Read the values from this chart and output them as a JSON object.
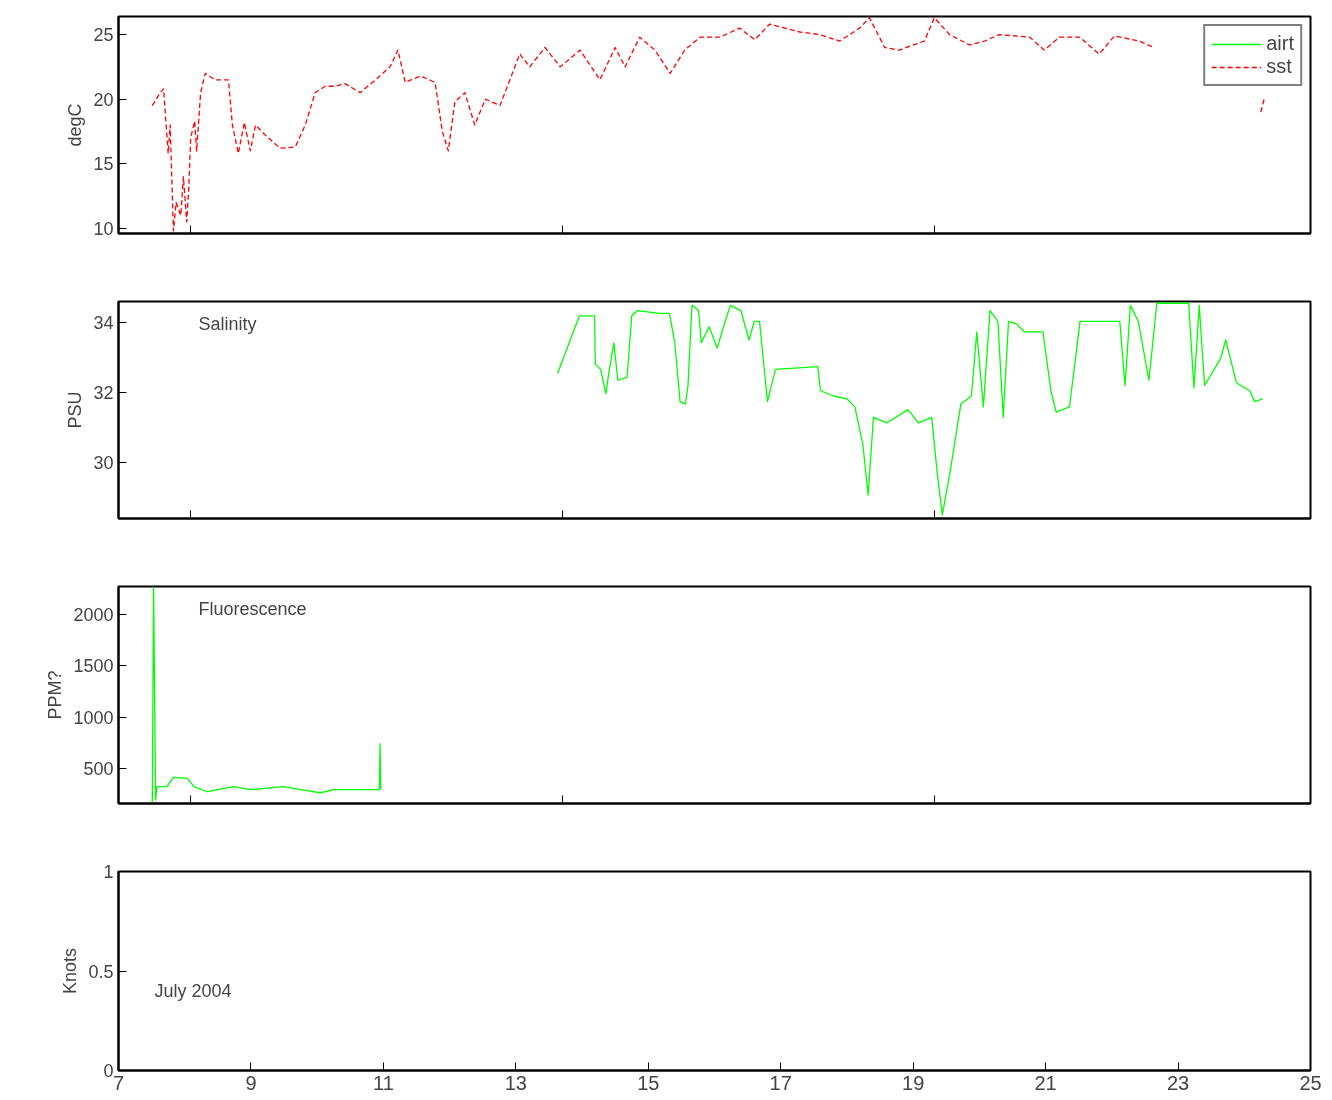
{
  "chart_data": [
    {
      "type": "line",
      "ylabel": "degC",
      "xlim": [
        7,
        25
      ],
      "ylim": [
        9.6,
        26.4
      ],
      "xticks": [
        {
          "value": 8.09,
          "label": null
        },
        {
          "value": 13.71,
          "label": null
        },
        {
          "value": 19.32,
          "label": null
        }
      ],
      "yticks": [
        10,
        15,
        20,
        25
      ],
      "tick_labels": "y",
      "grid": false,
      "legend": "top right",
      "series": [
        {
          "name": "airt",
          "color": "#00ff00",
          "line_style": "solid"
        },
        {
          "name": "sst",
          "color": "#ff0000",
          "line_style": "dashed",
          "x": [
            7.51,
            7.63,
            7.68,
            7.75,
            7.78,
            7.83,
            7.87,
            7.94,
            7.98,
            8.03,
            8.06,
            8.09,
            8.15,
            8.18,
            8.24,
            8.31,
            8.46,
            8.66,
            8.72,
            8.81,
            8.9,
            8.99,
            9.07,
            9.22,
            9.44,
            9.67,
            9.82,
            9.97,
            10.12,
            10.27,
            10.42,
            10.65,
            10.88,
            11.1,
            11.22,
            11.33,
            11.56,
            11.78,
            11.89,
            11.98,
            12.08,
            12.23,
            12.38,
            12.54,
            12.76,
            12.91,
            13.06,
            13.21,
            13.44,
            13.67,
            13.97,
            14.27,
            14.5,
            14.65,
            14.87,
            15.1,
            15.33,
            15.55,
            15.78,
            16.08,
            16.38,
            16.61,
            16.83,
            17.29,
            17.59,
            17.89,
            18.19,
            18.34,
            18.57,
            18.79,
            19.17,
            19.32,
            19.55,
            19.85,
            20.08,
            20.3,
            20.76,
            20.98,
            21.21,
            21.51,
            21.81,
            22.04,
            22.41,
            22.64,
            22.87,
            24.25,
            24.3
          ],
          "values": [
            19.5,
            20.5,
            20.8,
            15.8,
            18,
            9.8,
            12,
            11,
            14,
            10.5,
            13,
            17,
            18.3,
            16,
            20.5,
            22,
            21.5,
            21.5,
            18,
            15.8,
            18.2,
            16,
            18,
            17.2,
            16.2,
            16.3,
            18,
            20.5,
            21,
            21,
            21.2,
            20.5,
            21.5,
            22.5,
            23.8,
            21.3,
            21.8,
            21.3,
            17.5,
            16,
            19.8,
            20.5,
            18,
            20,
            19.5,
            21.5,
            23.5,
            22.5,
            24,
            22.5,
            23.8,
            21.5,
            24,
            22.5,
            24.8,
            23.8,
            22,
            23.8,
            24.8,
            24.8,
            25.5,
            24.6,
            25.8,
            25.2,
            25,
            24.5,
            25.5,
            26.3,
            24,
            23.8,
            24.5,
            26.3,
            25,
            24.2,
            24.5,
            25,
            24.8,
            23.8,
            24.8,
            24.8,
            23.5,
            24.9,
            24.5,
            24,
            null,
            19,
            20
          ]
        }
      ]
    },
    {
      "type": "line",
      "ylabel": "PSU",
      "annotations": [
        "Salinity"
      ],
      "xlim": [
        7,
        25
      ],
      "ylim": [
        28.4,
        34.6
      ],
      "xticks": [
        {
          "value": 8.09,
          "label": null
        },
        {
          "value": 13.71,
          "label": null
        },
        {
          "value": 19.32,
          "label": null
        }
      ],
      "yticks": [
        30,
        32,
        34
      ],
      "tick_labels": "y",
      "grid": false,
      "series": [
        {
          "color": "#00ff00",
          "line_style": "solid",
          "x": [
            13.63,
            13.96,
            14.19,
            14.2,
            14.28,
            14.36,
            14.4,
            14.48,
            14.54,
            14.68,
            14.75,
            14.84,
            15.16,
            15.32,
            15.4,
            15.48,
            15.56,
            15.6,
            15.66,
            15.76,
            15.8,
            15.92,
            16.04,
            16.16,
            16.24,
            16.4,
            16.52,
            16.6,
            16.68,
            16.8,
            16.92,
            17.56,
            17.6,
            17.8,
            18,
            18.12,
            18.24,
            18.32,
            18.4,
            18.6,
            18.92,
            19.08,
            19.28,
            19.36,
            19.44,
            19.56,
            19.72,
            19.88,
            19.96,
            20.06,
            20.16,
            20.28,
            20.36,
            20.44,
            20.56,
            20.68,
            20.84,
            20.96,
            21.08,
            21.16,
            21.36,
            21.52,
            22.12,
            22.2,
            22.28,
            22.4,
            22.56,
            22.68,
            23.16,
            23.24,
            23.32,
            23.4,
            23.64,
            23.72,
            23.88,
            24.08,
            24.16,
            24.28
          ],
          "values": [
            32.54,
            34.19,
            34.19,
            32.81,
            32.66,
            31.97,
            32.51,
            33.42,
            32.35,
            32.43,
            34.19,
            34.34,
            34.26,
            34.26,
            33.42,
            31.74,
            31.67,
            32.2,
            34.49,
            34.34,
            33.42,
            33.88,
            33.27,
            34.03,
            34.49,
            34.34,
            33.5,
            34.03,
            34.03,
            31.74,
            32.66,
            32.74,
            32.05,
            31.9,
            31.82,
            31.59,
            30.52,
            29.07,
            31.29,
            31.13,
            31.51,
            31.13,
            31.29,
            29.76,
            28.5,
            29.76,
            31.67,
            31.9,
            33.73,
            31.59,
            34.34,
            34.03,
            31.29,
            34.03,
            33.96,
            33.73,
            33.73,
            33.73,
            32.05,
            31.44,
            31.59,
            34.03,
            34.03,
            32.2,
            34.49,
            34.03,
            32.35,
            34.55,
            34.55,
            32.13,
            34.49,
            32.2,
            32.96,
            33.5,
            32.28,
            32.05,
            31.74,
            31.82
          ]
        }
      ]
    },
    {
      "type": "line",
      "ylabel": "PPM?",
      "annotations": [
        "Fluorescence"
      ],
      "xlim": [
        7,
        25
      ],
      "ylim": [
        155,
        2276
      ],
      "xticks": [
        {
          "value": 8.09,
          "label": null
        },
        {
          "value": 13.71,
          "label": null
        },
        {
          "value": 19.32,
          "label": null
        }
      ],
      "yticks": [
        500,
        1000,
        1500,
        2000
      ],
      "tick_labels": "y",
      "grid": false,
      "series": [
        {
          "color": "#00ff00",
          "line_style": "solid",
          "x": [
            7.51,
            7.53,
            7.56,
            7.58,
            7.73,
            7.83,
            8.04,
            8.14,
            8.34,
            8.74,
            8.99,
            9.49,
            9.75,
            10.05,
            10.25,
            10.75,
            10.94,
            10.95,
            10.96
          ],
          "values": [
            160,
            2270,
            190,
            320,
            320,
            410,
            400,
            320,
            270,
            320,
            290,
            320,
            290,
            260,
            290,
            290,
            290,
            740,
            300
          ]
        }
      ]
    },
    {
      "type": "line",
      "ylabel": "Knots",
      "annotations": [
        "July 2004"
      ],
      "xlim": [
        7,
        25
      ],
      "ylim": [
        0,
        1
      ],
      "xticks": [
        7,
        9,
        11,
        13,
        15,
        17,
        19,
        21,
        23,
        25
      ],
      "yticks": [
        0,
        0.5,
        1
      ],
      "grid": false
    }
  ]
}
